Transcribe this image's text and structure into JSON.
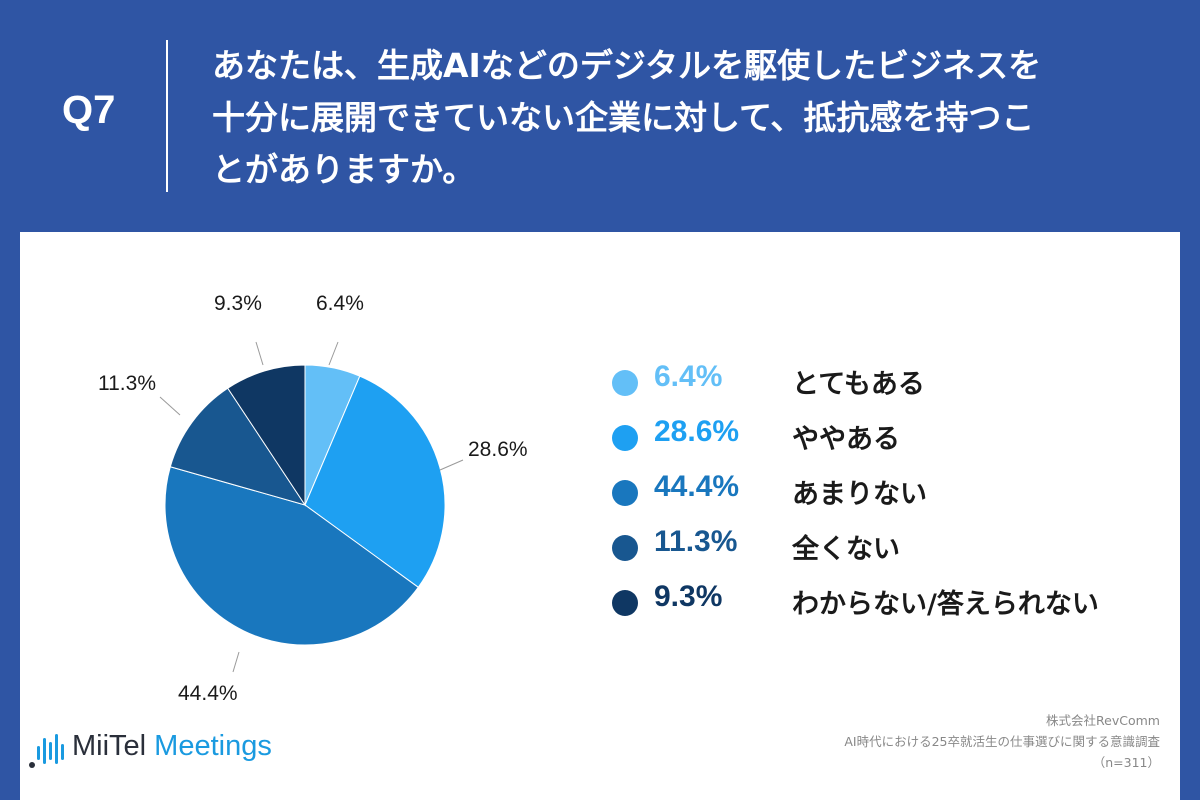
{
  "header": {
    "qnum": "Q7",
    "question_lines": [
      "あなたは、生成AIなどのデジタルを駆使したビジネスを",
      "十分に展開できていない企業に対して、抵抗感を持つこ",
      "とがありますか。"
    ]
  },
  "chart_data": {
    "type": "pie",
    "title": "",
    "start_angle_deg": 0,
    "direction": "clockwise",
    "slices": [
      {
        "label": "とてもある",
        "value": 6.4,
        "display": "6.4%",
        "color": "#63bff7"
      },
      {
        "label": "ややある",
        "value": 28.6,
        "display": "28.6%",
        "color": "#1ea0f2"
      },
      {
        "label": "あまりない",
        "value": 44.4,
        "display": "44.4%",
        "color": "#1977be"
      },
      {
        "label": "全くない",
        "value": 11.3,
        "display": "11.3%",
        "color": "#185790"
      },
      {
        "label": "わからない/答えられない",
        "value": 9.3,
        "display": "9.3%",
        "color": "#0f3763"
      }
    ],
    "legend_position": "right"
  },
  "legend_value_colors": [
    "#63bff7",
    "#1ea0f2",
    "#1977be",
    "#185790",
    "#0f3763"
  ],
  "logo": {
    "part1": "MiiTel",
    "part2": " Meetings",
    "bar_color": "#1a9ae0"
  },
  "source": {
    "company": "株式会社RevComm",
    "survey": "AI時代における25卒就活生の仕事選びに関する意識調査",
    "sample": "（n=311）"
  }
}
